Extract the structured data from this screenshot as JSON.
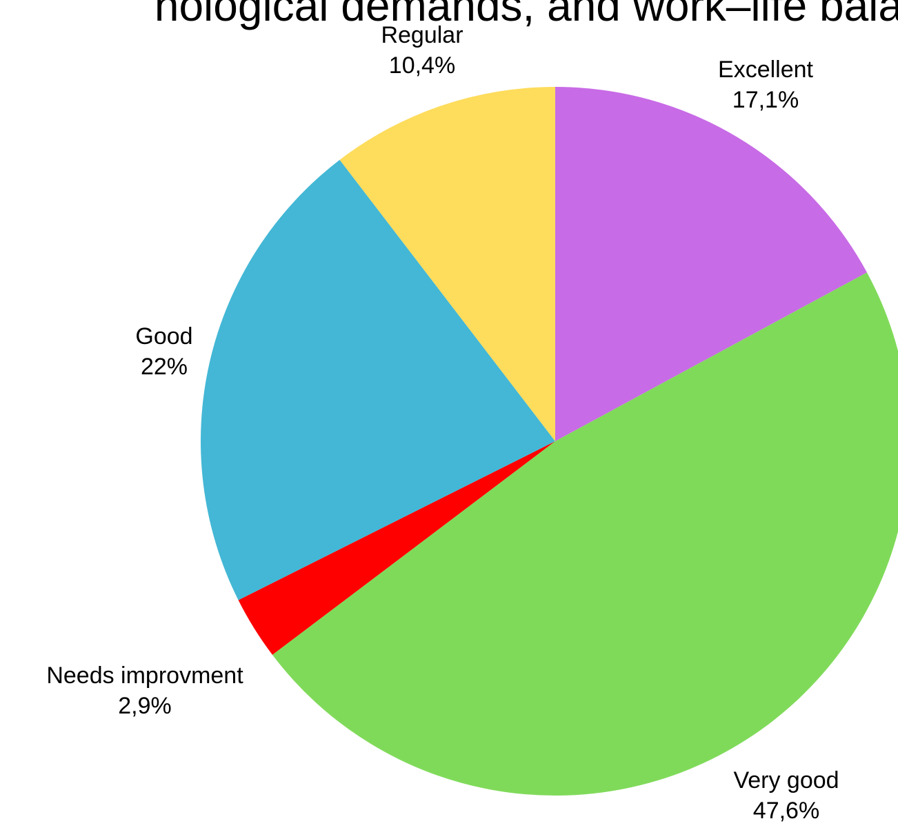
{
  "chart_data": {
    "type": "pie",
    "title": "nological demands, and work–life balance",
    "start_angle_deg": 0,
    "direction": "clockwise",
    "slices": [
      {
        "label": "Excellent",
        "value": 17.1,
        "value_text": "17,1%",
        "color": "#C86BE6"
      },
      {
        "label": "Very good",
        "value": 47.6,
        "value_text": "47,6%",
        "color": "#80DA5A"
      },
      {
        "label": "Needs improvment",
        "value": 2.9,
        "value_text": "2,9%",
        "color": "#FF0000"
      },
      {
        "label": "Good",
        "value": 22,
        "value_text": "22%",
        "color": "#43B7D5"
      },
      {
        "label": "Regular",
        "value": 10.4,
        "value_text": "10,4%",
        "color": "#FEDC5C"
      }
    ]
  }
}
